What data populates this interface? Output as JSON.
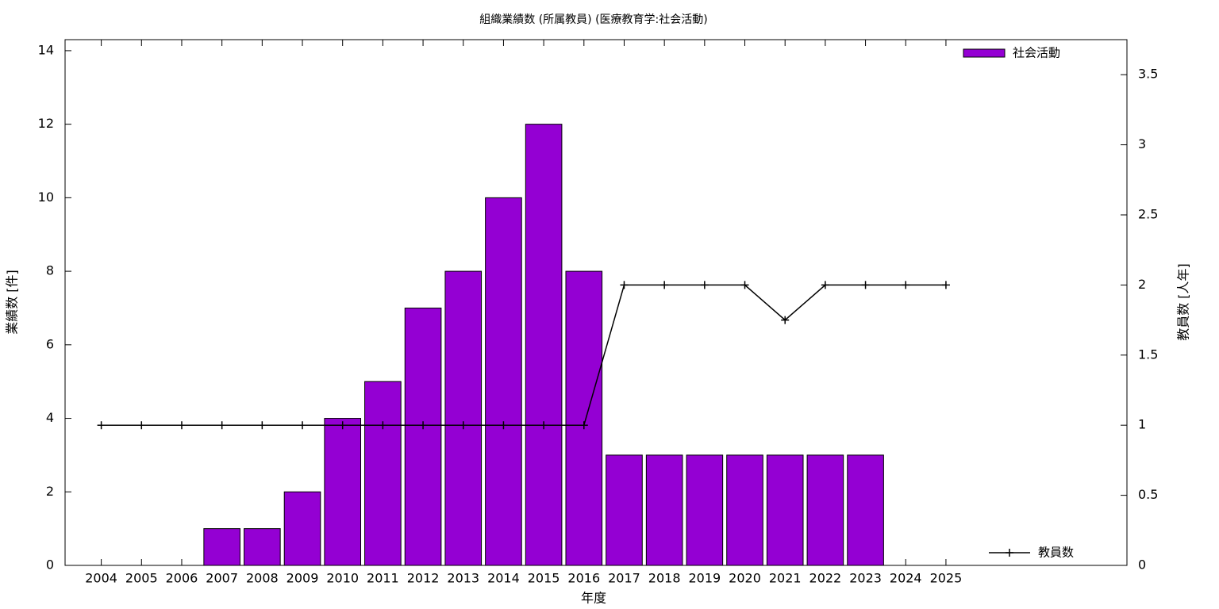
{
  "chart_data": {
    "type": "bar_line",
    "title": "組織業績数 (所属教員) (医療教育学:社会活動)",
    "x_label": "年度",
    "y_label": "業績数 [件]",
    "y2_label": "教員数 [人年]",
    "x": [
      2004,
      2005,
      2006,
      2007,
      2008,
      2009,
      2010,
      2011,
      2012,
      2013,
      2014,
      2015,
      2016,
      2017,
      2018,
      2019,
      2020,
      2021,
      2022,
      2023,
      2024,
      2025
    ],
    "xlim": [
      2003.1,
      2029.5
    ],
    "xticks": [
      2004,
      2005,
      2006,
      2007,
      2008,
      2009,
      2010,
      2011,
      2012,
      2013,
      2014,
      2015,
      2016,
      2017,
      2018,
      2019,
      2020,
      2021,
      2022,
      2023,
      2024,
      2025
    ],
    "ylim": [
      0,
      14.3
    ],
    "yticks": [
      0,
      2,
      4,
      6,
      8,
      10,
      12,
      14
    ],
    "y2lim": [
      0,
      3.75
    ],
    "y2ticks": [
      0,
      0.5,
      1,
      1.5,
      2,
      2.5,
      3,
      3.5
    ],
    "series": [
      {
        "name": "社会活動",
        "type": "bar",
        "color": "#9400d3",
        "legend": "top-right",
        "values": [
          0,
          0,
          0,
          1,
          1,
          2,
          4,
          5,
          7,
          8,
          10,
          12,
          8,
          3,
          3,
          3,
          3,
          3,
          3,
          3,
          0,
          0
        ]
      },
      {
        "name": "教員数",
        "type": "line",
        "axis": "y2",
        "color": "#000000",
        "legend": "bottom-right",
        "values": [
          1,
          1,
          1,
          1,
          1,
          1,
          1,
          1,
          1,
          1,
          1,
          1,
          1,
          2,
          2,
          2,
          2,
          1.75,
          2,
          2,
          2,
          2
        ]
      }
    ]
  }
}
